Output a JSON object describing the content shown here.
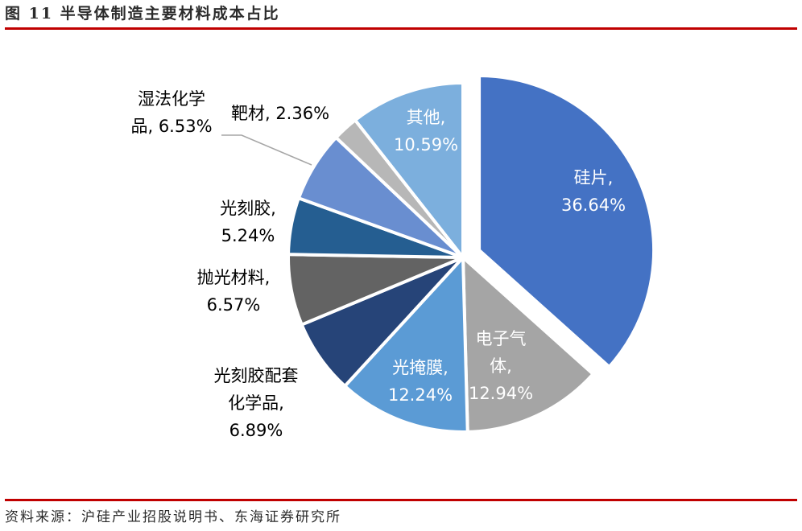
{
  "figure": {
    "title": "图 11 半导体制造主要材料成本占比",
    "source": "资料来源：沪硅产业招股说明书、东海证券研究所"
  },
  "chart_data": {
    "type": "pie",
    "title": "",
    "categories": [
      "硅片",
      "电子气体",
      "光掩膜",
      "光刻胶配套化学品",
      "抛光材料",
      "光刻胶",
      "湿法化学品",
      "靶材",
      "其他"
    ],
    "values": [
      36.64,
      12.94,
      12.24,
      6.89,
      6.57,
      5.24,
      6.53,
      2.36,
      10.59
    ],
    "colors": [
      "#4472c4",
      "#a5a5a5",
      "#5b9bd5",
      "#264478",
      "#636363",
      "#255e91",
      "#698ed0",
      "#b7b7b7",
      "#7cafdd"
    ],
    "explode": [
      "硅片"
    ],
    "data_labels": [
      {
        "lines": [
          "硅片,",
          "36.64%"
        ]
      },
      {
        "lines": [
          "电子气",
          "体,",
          "12.94%"
        ]
      },
      {
        "lines": [
          "光掩膜,",
          "12.24%"
        ]
      },
      {
        "lines": [
          "光刻胶配套",
          "化学品,",
          "6.89%"
        ]
      },
      {
        "lines": [
          "抛光材料,",
          "6.57%"
        ]
      },
      {
        "lines": [
          "光刻胶,",
          "5.24%"
        ]
      },
      {
        "lines": [
          "湿法化学",
          "品, 6.53%"
        ]
      },
      {
        "lines": [
          "靶材, 2.36%"
        ]
      },
      {
        "lines": [
          "其他,",
          "10.59%"
        ]
      }
    ]
  }
}
